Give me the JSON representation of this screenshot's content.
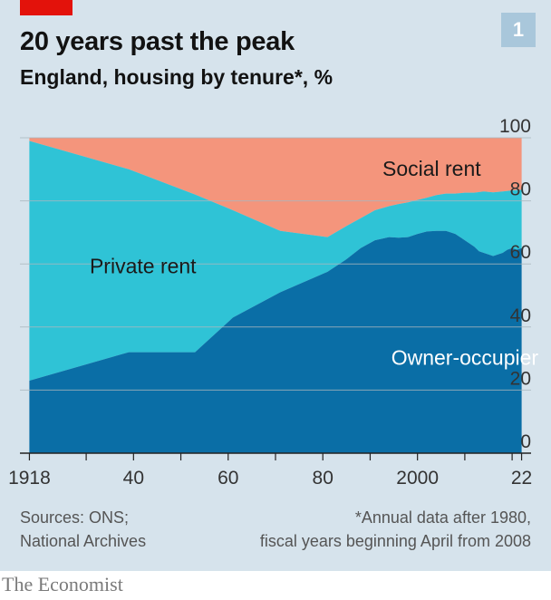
{
  "header": {
    "title": "20 years past the peak",
    "subtitle": "England, housing by tenure*, %",
    "chart_number": "1"
  },
  "footer": {
    "sources_line1": "Sources: ONS;",
    "sources_line2": "National Archives",
    "note_line1": "*Annual data after 1980,",
    "note_line2": "fiscal years beginning April from 2008",
    "brand": "The Economist"
  },
  "colors": {
    "background": "#d6e3ec",
    "owner_occupier": "#0a6ea6",
    "private_rent": "#2fc3d6",
    "social_rent": "#f4957c",
    "accent_red": "#e3120b",
    "badge": "#a9c7db"
  },
  "chart_data": {
    "type": "area",
    "stacked": true,
    "title": "20 years past the peak",
    "subtitle": "England, housing by tenure*, %",
    "ylim": [
      0,
      100
    ],
    "xlim": [
      1916,
      2024
    ],
    "y_axis_position": "right",
    "grid": true,
    "legend": "labels inside areas",
    "x_tick_labels": [
      {
        "x": 1918,
        "label": "1918"
      },
      {
        "x": 1940,
        "label": "40"
      },
      {
        "x": 1960,
        "label": "60"
      },
      {
        "x": 1980,
        "label": "80"
      },
      {
        "x": 2000,
        "label": "2000"
      },
      {
        "x": 2022,
        "label": "22"
      }
    ],
    "x_minor_ticks": [
      1918,
      1930,
      1940,
      1950,
      1960,
      1970,
      1980,
      1990,
      2000,
      2010,
      2020,
      2022
    ],
    "y_tick_labels": [
      {
        "y": 0,
        "label": "0"
      },
      {
        "y": 20,
        "label": "20"
      },
      {
        "y": 40,
        "label": "40"
      },
      {
        "y": 60,
        "label": "60"
      },
      {
        "y": 80,
        "label": "80"
      },
      {
        "y": 100,
        "label": "100"
      }
    ],
    "series": [
      {
        "name": "Owner-occupier",
        "color": "#0a6ea6",
        "points": [
          [
            1918,
            23
          ],
          [
            1939,
            32
          ],
          [
            1953,
            32
          ],
          [
            1961,
            43
          ],
          [
            1971,
            51
          ],
          [
            1981,
            57.5
          ],
          [
            1985,
            61.5
          ],
          [
            1988,
            65
          ],
          [
            1991,
            67.5
          ],
          [
            1994,
            68.5
          ],
          [
            1996,
            68.3
          ],
          [
            1998,
            68.5
          ],
          [
            2000,
            69.5
          ],
          [
            2002,
            70.3
          ],
          [
            2004,
            70.5
          ],
          [
            2006,
            70.5
          ],
          [
            2007,
            70
          ],
          [
            2008,
            69.5
          ],
          [
            2009,
            68.5
          ],
          [
            2010,
            67.5
          ],
          [
            2011,
            66.5
          ],
          [
            2012,
            65.5
          ],
          [
            2013,
            64
          ],
          [
            2014,
            63.5
          ],
          [
            2015,
            63
          ],
          [
            2016,
            62.5
          ],
          [
            2017,
            63
          ],
          [
            2018,
            63.5
          ],
          [
            2019,
            64.5
          ],
          [
            2020,
            65
          ],
          [
            2021,
            64.5
          ],
          [
            2022,
            65
          ]
        ]
      },
      {
        "name": "Private rent",
        "color": "#2fc3d6",
        "cumulative_top": [
          [
            1918,
            99
          ],
          [
            1939,
            90
          ],
          [
            1953,
            82
          ],
          [
            1961,
            77
          ],
          [
            1971,
            70.5
          ],
          [
            1981,
            68.5
          ],
          [
            1985,
            72
          ],
          [
            1988,
            74.5
          ],
          [
            1991,
            77
          ],
          [
            1994,
            78.3
          ],
          [
            1996,
            79
          ],
          [
            1998,
            79.5
          ],
          [
            2000,
            80.3
          ],
          [
            2002,
            81
          ],
          [
            2004,
            81.8
          ],
          [
            2006,
            82.3
          ],
          [
            2008,
            82.3
          ],
          [
            2010,
            82.6
          ],
          [
            2012,
            82.6
          ],
          [
            2014,
            83
          ],
          [
            2016,
            82.7
          ],
          [
            2018,
            83
          ],
          [
            2020,
            83.3
          ],
          [
            2022,
            83.5
          ]
        ]
      },
      {
        "name": "Social rent",
        "color": "#f4957c",
        "cumulative_top": 100
      }
    ],
    "area_labels": [
      {
        "text": "Social rent",
        "x": 2003,
        "y": 88
      },
      {
        "text": "Private rent",
        "x": 1942,
        "y": 57
      },
      {
        "text": "Owner-occupier",
        "x": 2010,
        "y": 28
      }
    ]
  }
}
